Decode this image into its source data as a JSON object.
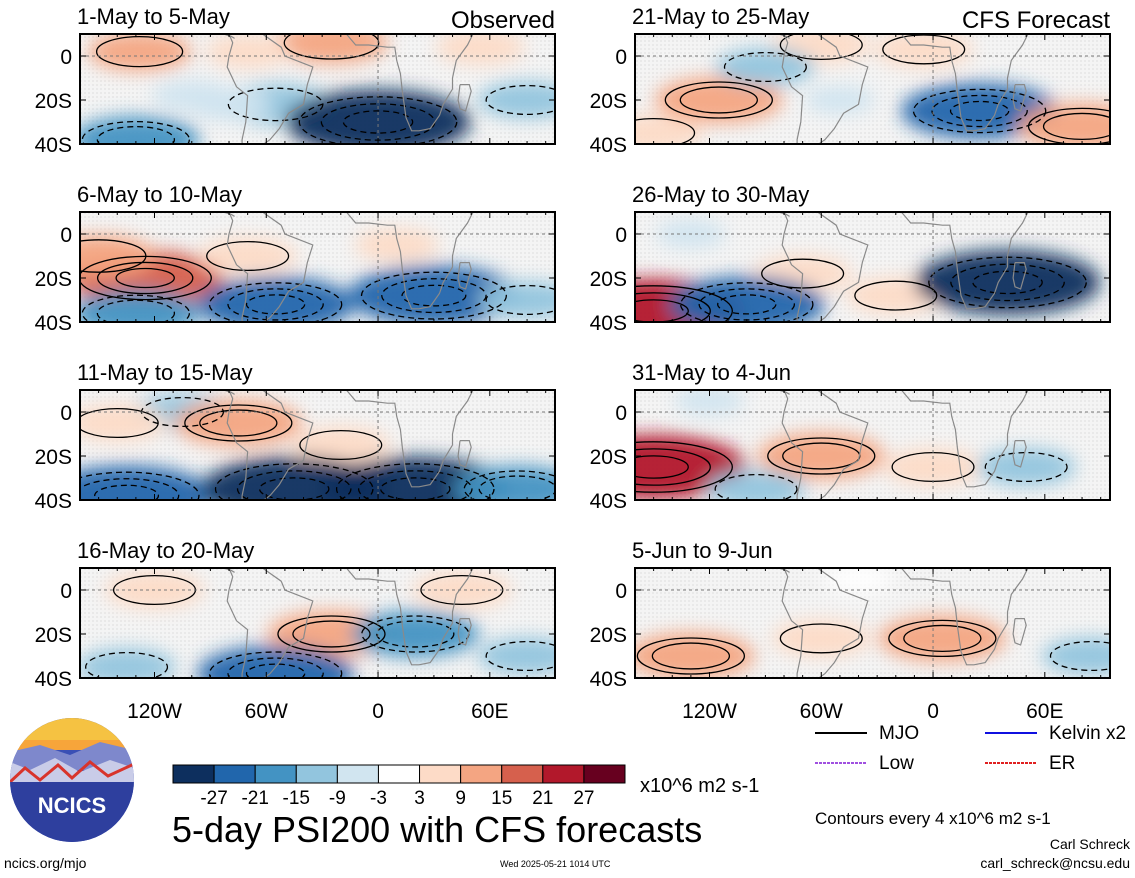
{
  "figure": {
    "title": "5-day PSI200 with CFS forecasts",
    "left_column_label": "Observed",
    "right_column_label": "CFS Forecast",
    "site": "ncics.org/mjo",
    "timestamp": "Wed 2025-05-21 1014 UTC",
    "author": "Carl Schreck",
    "email": "carl_schreck@ncsu.edu",
    "contour_note": "Contours every 4 x10^6 m2 s-1",
    "logo_text": "NCICS"
  },
  "legend": {
    "items": [
      {
        "label": "MJO",
        "color": "#000000"
      },
      {
        "label": "Kelvin x2",
        "color": "#1010e0"
      },
      {
        "label": "Low",
        "color": "#a050e0"
      },
      {
        "label": "ER",
        "color": "#e02020"
      }
    ]
  },
  "colorbar": {
    "unit": "x10^6 m2 s-1",
    "tick_labels": [
      "-27",
      "-21",
      "-15",
      "-9",
      "-3",
      "3",
      "9",
      "15",
      "21",
      "27"
    ],
    "colors": [
      "#0d2f5e",
      "#2166ac",
      "#4393c3",
      "#92c5de",
      "#d1e5f0",
      "#ffffff",
      "#fddbc7",
      "#f4a582",
      "#d6604d",
      "#b2182b",
      "#67001f"
    ]
  },
  "chart_data": {
    "type": "heatmap",
    "variable": "PSI200",
    "x_ticks": [
      "120W",
      "60W",
      "0",
      "60E"
    ],
    "x_tick_values": [
      -120,
      -60,
      0,
      60
    ],
    "xlim": [
      -160,
      95
    ],
    "y_ticks": [
      "0",
      "20S",
      "40S"
    ],
    "y_tick_values": [
      0,
      -20,
      -40
    ],
    "ylim": [
      -40,
      10
    ],
    "panels": [
      {
        "title": "1-May to 5-May",
        "column": "observed",
        "anomalies": [
          {
            "lon": -25,
            "lat": 6,
            "value": 12
          },
          {
            "lon": -128,
            "lat": 2,
            "value": 10
          },
          {
            "lon": 55,
            "lat": 4,
            "value": 7
          },
          {
            "lon": -70,
            "lat": 2,
            "value": 6
          },
          {
            "lon": -55,
            "lat": -22,
            "value": -12
          },
          {
            "lon": 0,
            "lat": -30,
            "value": -27
          },
          {
            "lon": -130,
            "lat": -38,
            "value": -15
          },
          {
            "lon": -80,
            "lat": -22,
            "value": -6
          },
          {
            "lon": 80,
            "lat": -20,
            "value": -9
          },
          {
            "lon": -100,
            "lat": -18,
            "value": -5
          }
        ]
      },
      {
        "title": "6-May to 10-May",
        "column": "observed",
        "anomalies": [
          {
            "lon": -125,
            "lat": -20,
            "value": 21
          },
          {
            "lon": -150,
            "lat": -10,
            "value": 12
          },
          {
            "lon": -70,
            "lat": -10,
            "value": 9
          },
          {
            "lon": 10,
            "lat": -5,
            "value": 6
          },
          {
            "lon": 30,
            "lat": -28,
            "value": -24
          },
          {
            "lon": -55,
            "lat": -32,
            "value": -21
          },
          {
            "lon": -130,
            "lat": -36,
            "value": -15
          },
          {
            "lon": 80,
            "lat": -30,
            "value": -9
          }
        ]
      },
      {
        "title": "11-May to 15-May",
        "column": "observed",
        "anomalies": [
          {
            "lon": -105,
            "lat": 0,
            "value": -9
          },
          {
            "lon": -75,
            "lat": -5,
            "value": 15
          },
          {
            "lon": -20,
            "lat": -15,
            "value": 9
          },
          {
            "lon": -140,
            "lat": -5,
            "value": 9
          },
          {
            "lon": -135,
            "lat": -38,
            "value": -24
          },
          {
            "lon": -45,
            "lat": -35,
            "value": -27
          },
          {
            "lon": 20,
            "lat": -35,
            "value": -27
          },
          {
            "lon": 75,
            "lat": -35,
            "value": -15
          }
        ]
      },
      {
        "title": "16-May to 20-May",
        "column": "observed",
        "anomalies": [
          {
            "lon": -25,
            "lat": -20,
            "value": 15
          },
          {
            "lon": -120,
            "lat": 0,
            "value": 9
          },
          {
            "lon": 45,
            "lat": 0,
            "value": 9
          },
          {
            "lon": 20,
            "lat": -20,
            "value": -15
          },
          {
            "lon": -55,
            "lat": -38,
            "value": -21
          },
          {
            "lon": -135,
            "lat": -35,
            "value": -9
          },
          {
            "lon": 80,
            "lat": -30,
            "value": -9
          }
        ]
      },
      {
        "title": "21-May to 25-May",
        "column": "forecast",
        "anomalies": [
          {
            "lon": -115,
            "lat": -20,
            "value": 15
          },
          {
            "lon": -60,
            "lat": 5,
            "value": 9
          },
          {
            "lon": -5,
            "lat": 3,
            "value": 9
          },
          {
            "lon": 25,
            "lat": -25,
            "value": -21
          },
          {
            "lon": -90,
            "lat": -5,
            "value": -9
          },
          {
            "lon": -50,
            "lat": -20,
            "value": -3
          },
          {
            "lon": 80,
            "lat": -32,
            "value": 15
          },
          {
            "lon": -150,
            "lat": -35,
            "value": 9
          }
        ]
      },
      {
        "title": "26-May to 30-May",
        "column": "forecast",
        "anomalies": [
          {
            "lon": -150,
            "lat": -35,
            "value": 27
          },
          {
            "lon": -70,
            "lat": -18,
            "value": 9
          },
          {
            "lon": -20,
            "lat": -28,
            "value": 9
          },
          {
            "lon": 40,
            "lat": -22,
            "value": -27
          },
          {
            "lon": -100,
            "lat": -32,
            "value": -21
          },
          {
            "lon": -130,
            "lat": 0,
            "value": -3
          }
        ]
      },
      {
        "title": "31-May to 4-Jun",
        "column": "forecast",
        "anomalies": [
          {
            "lon": -150,
            "lat": -25,
            "value": 27
          },
          {
            "lon": -60,
            "lat": -20,
            "value": 15
          },
          {
            "lon": 0,
            "lat": -25,
            "value": 9
          },
          {
            "lon": -95,
            "lat": -35,
            "value": -9
          },
          {
            "lon": 50,
            "lat": -25,
            "value": -9
          },
          {
            "lon": -120,
            "lat": 5,
            "value": -3
          }
        ]
      },
      {
        "title": "5-Jun to 9-Jun",
        "column": "forecast",
        "anomalies": [
          {
            "lon": -130,
            "lat": -30,
            "value": 15
          },
          {
            "lon": -60,
            "lat": -22,
            "value": 9
          },
          {
            "lon": 5,
            "lat": -22,
            "value": 15
          },
          {
            "lon": 85,
            "lat": -30,
            "value": -9
          },
          {
            "lon": -40,
            "lat": 5,
            "value": 3
          }
        ]
      }
    ]
  }
}
